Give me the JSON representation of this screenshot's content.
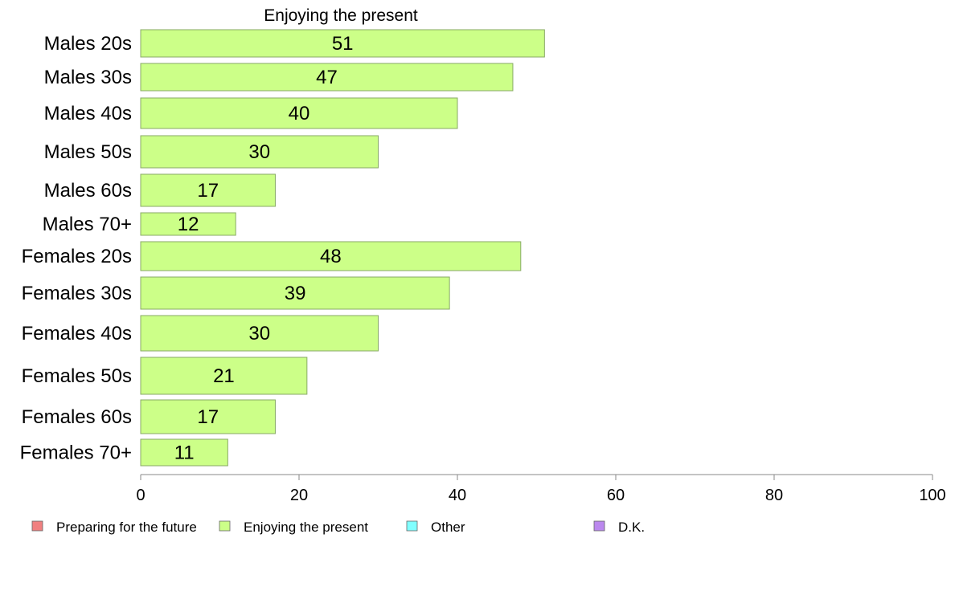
{
  "chart_data": {
    "type": "bar",
    "orientation": "horizontal",
    "title": "Enjoying the present",
    "xlabel": "",
    "ylabel": "",
    "xlim": [
      0,
      100
    ],
    "x_ticks": [
      "0",
      "20",
      "40",
      "60",
      "80",
      "100"
    ],
    "categories": [
      "Males 20s",
      "Males 30s",
      "Males 40s",
      "Males 50s",
      "Males 60s",
      "Males 70+",
      "Females 20s",
      "Females 30s",
      "Females 40s",
      "Females 50s",
      "Females 60s",
      "Females 70+"
    ],
    "series": [
      {
        "name": "Enjoying the present",
        "values": [
          51,
          47,
          40,
          30,
          17,
          12,
          48,
          39,
          30,
          21,
          17,
          11
        ]
      }
    ],
    "legend_position": "bottom",
    "grid": false,
    "legend": [
      {
        "label": "Preparing for the future",
        "color": "#f08080"
      },
      {
        "label": "Enjoying the present",
        "color": "#ccff88"
      },
      {
        "label": "Other",
        "color": "#80ffff"
      },
      {
        "label": "D.K.",
        "color": "#bb88ee"
      }
    ],
    "bar_color": "#ccff88",
    "bar_border_color": "#88aa66"
  }
}
